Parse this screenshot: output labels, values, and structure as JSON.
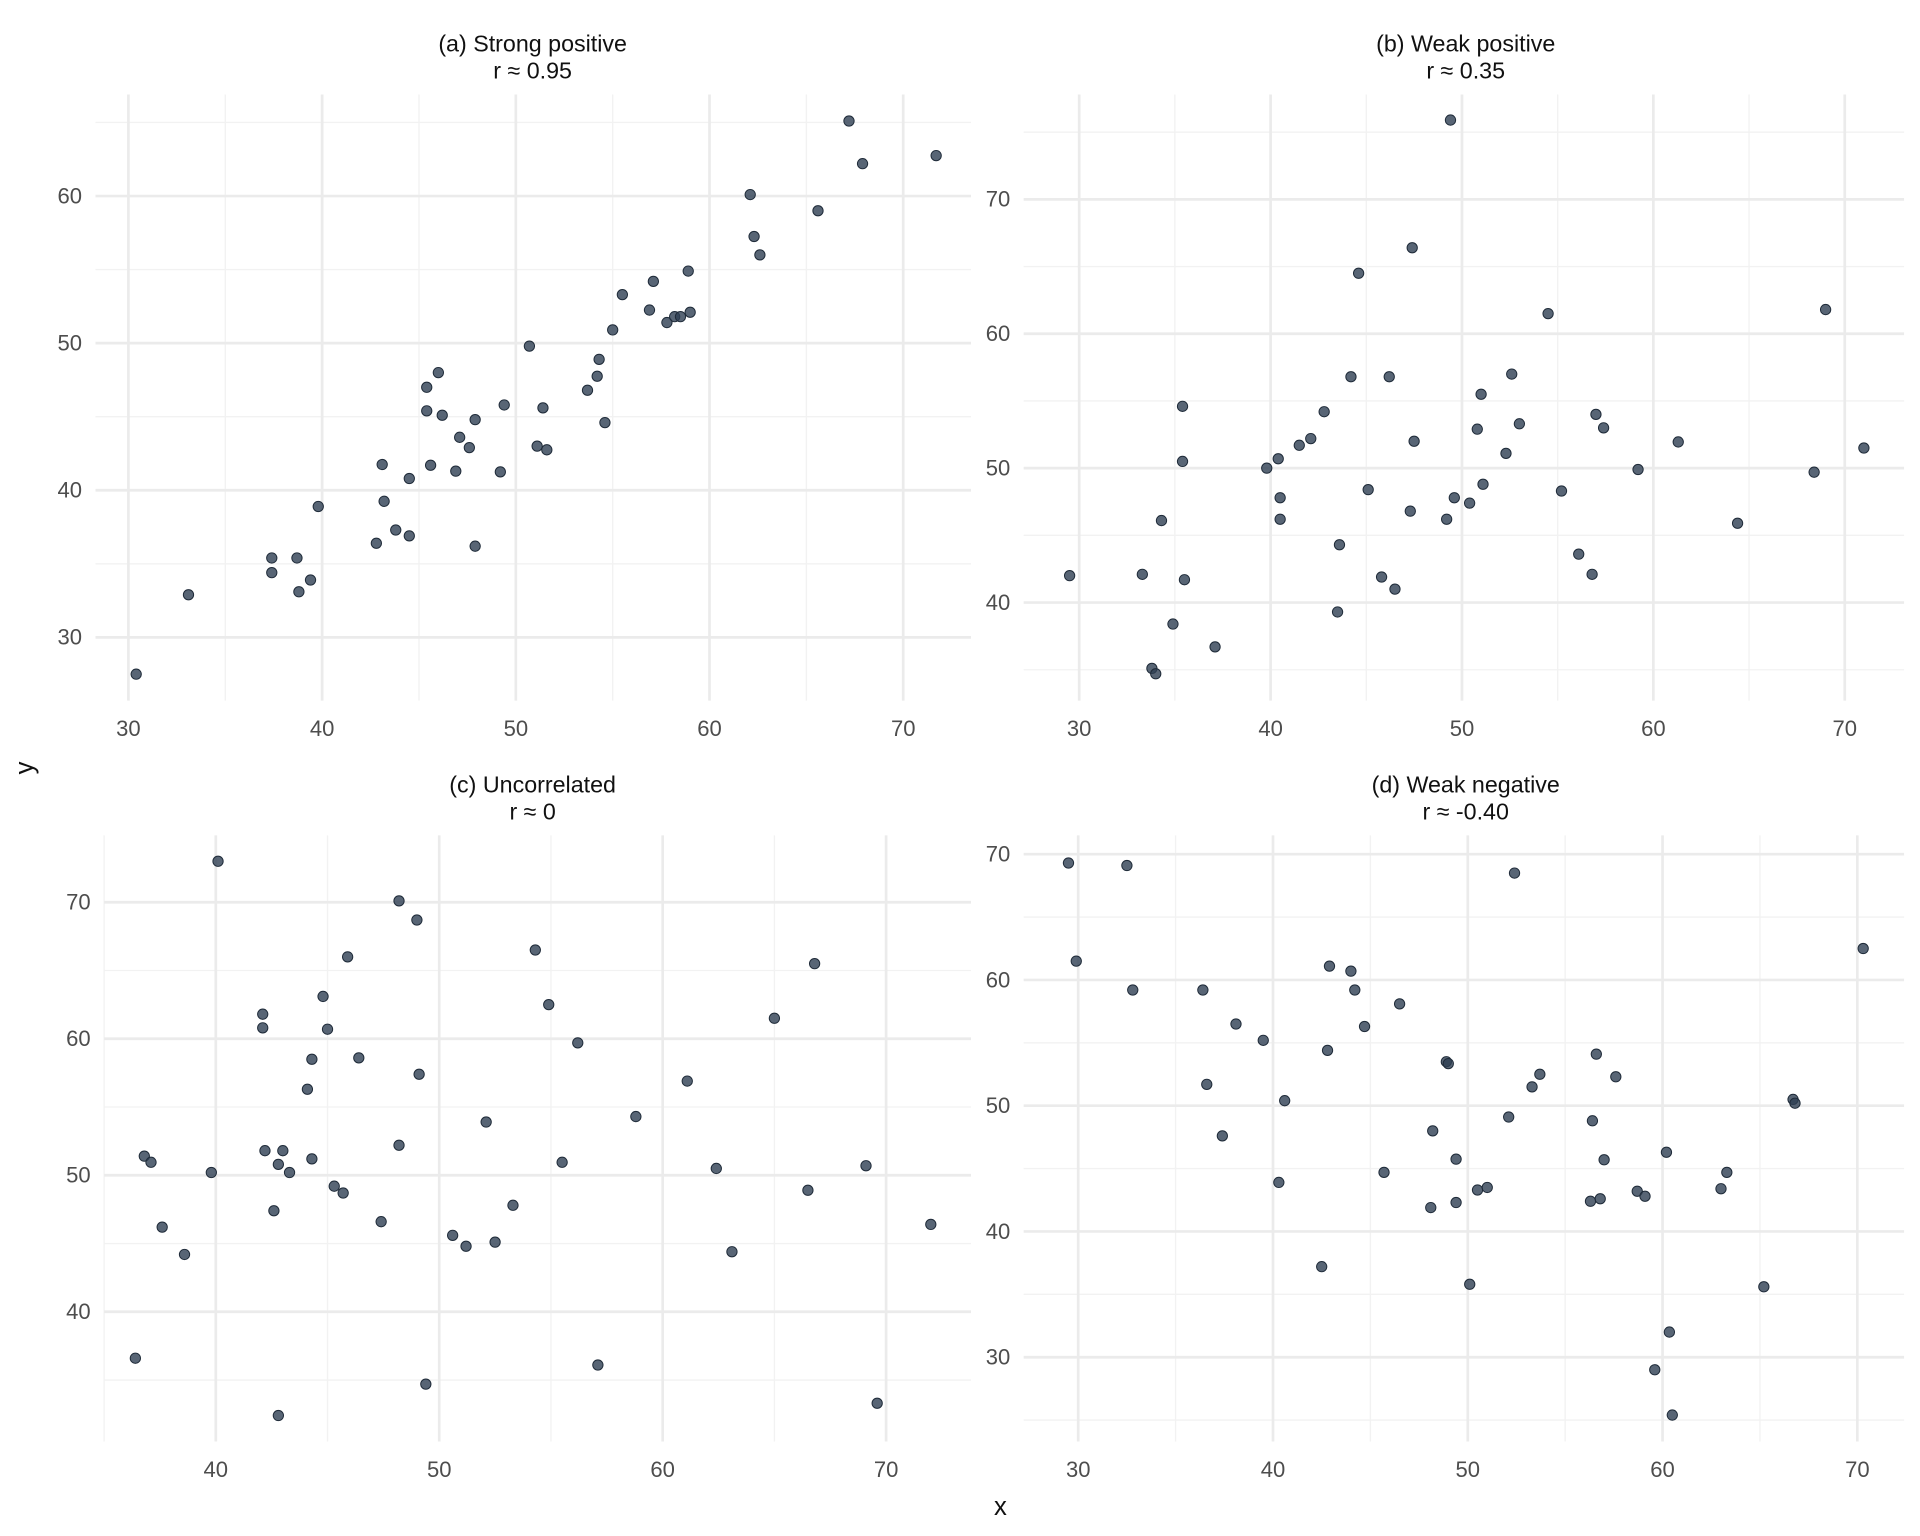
{
  "axis_labels": {
    "x": "x",
    "y": "y"
  },
  "chart_data": [
    {
      "type": "scatter",
      "title": "(a) Strong positive",
      "subtitle": "r ≈ 0.95",
      "xlabel": "x",
      "ylabel": "y",
      "xlim": [
        28.3,
        73.5
      ],
      "ylim": [
        25.7,
        66.9
      ],
      "xticks": [
        30,
        40,
        50,
        60,
        70
      ],
      "yticks": [
        30,
        40,
        50,
        60
      ],
      "grid": true,
      "points": [
        [
          30.4,
          27.5
        ],
        [
          33.1,
          32.9
        ],
        [
          37.4,
          35.4
        ],
        [
          37.4,
          34.4
        ],
        [
          38.7,
          35.4
        ],
        [
          38.8,
          33.1
        ],
        [
          39.4,
          33.9
        ],
        [
          39.8,
          38.9
        ],
        [
          42.8,
          36.4
        ],
        [
          43.1,
          41.75
        ],
        [
          43.2,
          39.25
        ],
        [
          43.8,
          37.3
        ],
        [
          44.5,
          36.9
        ],
        [
          44.5,
          40.8
        ],
        [
          45.4,
          47.0
        ],
        [
          45.4,
          45.4
        ],
        [
          45.6,
          41.7
        ],
        [
          46.0,
          48.0
        ],
        [
          46.2,
          45.1
        ],
        [
          46.9,
          41.3
        ],
        [
          47.1,
          43.6
        ],
        [
          47.6,
          42.9
        ],
        [
          47.9,
          36.2
        ],
        [
          47.9,
          44.8
        ],
        [
          49.2,
          41.25
        ],
        [
          49.4,
          45.8
        ],
        [
          50.7,
          49.8
        ],
        [
          51.1,
          43.0
        ],
        [
          51.4,
          45.6
        ],
        [
          51.6,
          42.75
        ],
        [
          53.7,
          46.8
        ],
        [
          54.2,
          47.75
        ],
        [
          54.3,
          48.9
        ],
        [
          54.6,
          44.6
        ],
        [
          55.0,
          50.9
        ],
        [
          55.5,
          53.3
        ],
        [
          56.9,
          52.25
        ],
        [
          57.1,
          54.2
        ],
        [
          57.8,
          51.4
        ],
        [
          58.2,
          51.8
        ],
        [
          58.5,
          51.8
        ],
        [
          58.9,
          54.9
        ],
        [
          59.0,
          52.1
        ],
        [
          62.1,
          60.1
        ],
        [
          62.3,
          57.25
        ],
        [
          62.6,
          56.0
        ],
        [
          65.6,
          59.0
        ],
        [
          67.2,
          65.1
        ],
        [
          67.9,
          62.2
        ],
        [
          71.7,
          62.75
        ]
      ]
    },
    {
      "type": "scatter",
      "title": "(b) Weak positive",
      "subtitle": "r ≈ 0.35",
      "xlabel": "x",
      "ylabel": "y",
      "xlim": [
        27.1,
        73.1
      ],
      "ylim": [
        32.7,
        77.8
      ],
      "xticks": [
        30,
        40,
        50,
        60,
        70
      ],
      "yticks": [
        40,
        50,
        60,
        70
      ],
      "grid": true,
      "points": [
        [
          29.5,
          42.0
        ],
        [
          33.3,
          42.1
        ],
        [
          33.8,
          35.1
        ],
        [
          34.0,
          34.7
        ],
        [
          34.3,
          46.1
        ],
        [
          34.9,
          38.4
        ],
        [
          35.4,
          54.6
        ],
        [
          35.4,
          50.5
        ],
        [
          35.5,
          41.7
        ],
        [
          37.1,
          36.7
        ],
        [
          39.8,
          50.0
        ],
        [
          40.4,
          50.7
        ],
        [
          40.5,
          47.8
        ],
        [
          40.5,
          46.2
        ],
        [
          41.5,
          51.7
        ],
        [
          42.1,
          52.2
        ],
        [
          42.8,
          54.2
        ],
        [
          43.5,
          39.3
        ],
        [
          43.6,
          44.3
        ],
        [
          44.2,
          56.8
        ],
        [
          44.6,
          64.5
        ],
        [
          45.1,
          48.4
        ],
        [
          45.8,
          41.9
        ],
        [
          46.2,
          56.8
        ],
        [
          46.5,
          41.0
        ],
        [
          47.3,
          46.8
        ],
        [
          47.4,
          66.4
        ],
        [
          47.5,
          52.0
        ],
        [
          49.2,
          46.2
        ],
        [
          49.4,
          75.9
        ],
        [
          49.6,
          47.8
        ],
        [
          50.4,
          47.4
        ],
        [
          50.8,
          52.9
        ],
        [
          51.0,
          55.5
        ],
        [
          51.1,
          48.8
        ],
        [
          52.3,
          51.1
        ],
        [
          52.6,
          57.0
        ],
        [
          53.0,
          53.3
        ],
        [
          54.5,
          61.5
        ],
        [
          55.2,
          48.3
        ],
        [
          56.1,
          43.6
        ],
        [
          56.8,
          42.1
        ],
        [
          57.0,
          54.0
        ],
        [
          57.4,
          53.0
        ],
        [
          59.2,
          49.9
        ],
        [
          61.3,
          51.95
        ],
        [
          64.4,
          45.9
        ],
        [
          68.4,
          49.7
        ],
        [
          69.0,
          61.8
        ],
        [
          71.0,
          51.5
        ]
      ]
    },
    {
      "type": "scatter",
      "title": "(c) Uncorrelated",
      "subtitle": "r ≈ 0",
      "xlabel": "x",
      "ylabel": "y",
      "xlim": [
        35.0,
        73.8
      ],
      "ylim": [
        30.5,
        74.9
      ],
      "xticks": [
        40,
        50,
        60,
        70
      ],
      "yticks": [
        40,
        50,
        60,
        70
      ],
      "grid": true,
      "points": [
        [
          36.4,
          36.6
        ],
        [
          36.8,
          51.4
        ],
        [
          37.1,
          50.95
        ],
        [
          37.6,
          46.2
        ],
        [
          38.6,
          44.2
        ],
        [
          39.8,
          50.2
        ],
        [
          40.1,
          73.0
        ],
        [
          42.1,
          61.8
        ],
        [
          42.1,
          60.8
        ],
        [
          42.2,
          51.8
        ],
        [
          42.6,
          47.4
        ],
        [
          42.8,
          50.8
        ],
        [
          42.8,
          32.4
        ],
        [
          43.0,
          51.8
        ],
        [
          43.3,
          50.2
        ],
        [
          44.1,
          56.3
        ],
        [
          44.3,
          58.5
        ],
        [
          44.3,
          51.2
        ],
        [
          44.8,
          63.1
        ],
        [
          45.0,
          60.7
        ],
        [
          45.3,
          49.2
        ],
        [
          45.7,
          48.7
        ],
        [
          45.9,
          66.0
        ],
        [
          46.4,
          58.6
        ],
        [
          47.4,
          46.6
        ],
        [
          48.2,
          70.1
        ],
        [
          48.2,
          52.2
        ],
        [
          49.0,
          68.7
        ],
        [
          49.1,
          57.4
        ],
        [
          49.4,
          34.7
        ],
        [
          50.6,
          45.6
        ],
        [
          51.2,
          44.8
        ],
        [
          52.1,
          53.9
        ],
        [
          52.5,
          45.1
        ],
        [
          53.3,
          47.8
        ],
        [
          54.3,
          66.5
        ],
        [
          54.9,
          62.5
        ],
        [
          55.5,
          50.95
        ],
        [
          56.2,
          59.7
        ],
        [
          57.1,
          36.1
        ],
        [
          58.8,
          54.3
        ],
        [
          61.1,
          56.9
        ],
        [
          62.4,
          50.5
        ],
        [
          63.1,
          44.4
        ],
        [
          65.0,
          61.5
        ],
        [
          66.5,
          48.9
        ],
        [
          66.8,
          65.5
        ],
        [
          69.1,
          50.7
        ],
        [
          69.6,
          33.3
        ],
        [
          72.0,
          46.4
        ]
      ]
    },
    {
      "type": "scatter",
      "title": "(d) Weak negative",
      "subtitle": "r ≈ -0.40",
      "xlabel": "x",
      "ylabel": "y",
      "xlim": [
        27.2,
        72.4
      ],
      "ylim": [
        23.3,
        71.5
      ],
      "xticks": [
        30,
        40,
        50,
        60,
        70
      ],
      "yticks": [
        30,
        40,
        50,
        60,
        70
      ],
      "grid": true,
      "points": [
        [
          29.5,
          69.3
        ],
        [
          29.9,
          61.5
        ],
        [
          32.5,
          69.1
        ],
        [
          32.8,
          59.2
        ],
        [
          36.4,
          59.2
        ],
        [
          36.6,
          51.7
        ],
        [
          37.4,
          47.6
        ],
        [
          38.1,
          56.5
        ],
        [
          39.5,
          55.2
        ],
        [
          40.3,
          43.9
        ],
        [
          40.6,
          50.4
        ],
        [
          42.5,
          37.2
        ],
        [
          42.8,
          54.4
        ],
        [
          42.9,
          61.1
        ],
        [
          44.0,
          60.7
        ],
        [
          44.2,
          59.2
        ],
        [
          44.7,
          56.3
        ],
        [
          45.7,
          44.7
        ],
        [
          46.5,
          58.1
        ],
        [
          48.1,
          41.9
        ],
        [
          48.2,
          48.0
        ],
        [
          48.9,
          53.5
        ],
        [
          49.0,
          53.35
        ],
        [
          49.4,
          42.3
        ],
        [
          49.4,
          45.75
        ],
        [
          50.1,
          35.8
        ],
        [
          50.5,
          43.3
        ],
        [
          51.0,
          43.5
        ],
        [
          52.1,
          49.1
        ],
        [
          52.4,
          68.5
        ],
        [
          53.3,
          51.5
        ],
        [
          53.7,
          52.5
        ],
        [
          56.3,
          42.4
        ],
        [
          56.4,
          48.8
        ],
        [
          56.6,
          54.1
        ],
        [
          56.8,
          42.6
        ],
        [
          57.0,
          45.7
        ],
        [
          57.6,
          52.3
        ],
        [
          58.7,
          43.2
        ],
        [
          59.1,
          42.8
        ],
        [
          59.6,
          29.0
        ],
        [
          60.2,
          46.3
        ],
        [
          60.35,
          32.0
        ],
        [
          60.5,
          25.4
        ],
        [
          63.0,
          43.4
        ],
        [
          63.3,
          44.7
        ],
        [
          65.2,
          35.6
        ],
        [
          66.7,
          50.5
        ],
        [
          66.8,
          50.2
        ],
        [
          70.3,
          62.5
        ]
      ]
    }
  ]
}
